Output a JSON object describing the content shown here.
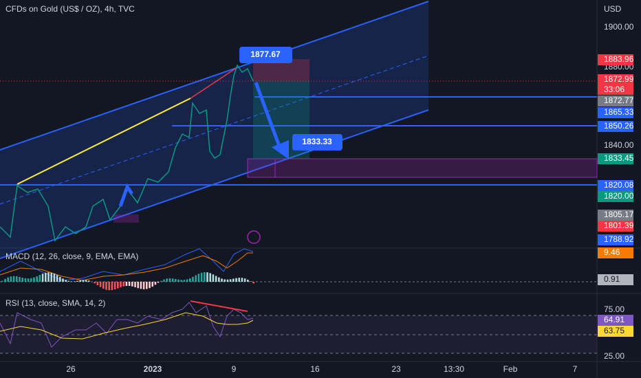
{
  "header": {
    "title": "CFDs on Gold (US$ / OZ), 4h, TVC"
  },
  "price_axis": {
    "unit": "USD",
    "ticks": [
      "1900.00",
      "1880.00",
      "1840.00"
    ],
    "tags": [
      {
        "text": "1883.96",
        "color": "#f23645"
      },
      {
        "text": "1872.99",
        "color": "#f23645"
      },
      {
        "text": "1872.77",
        "color": "#787b86"
      },
      {
        "text": "1865.33",
        "color": "#2962ff"
      },
      {
        "text": "1850.26",
        "color": "#2962ff"
      },
      {
        "text": "1833.45",
        "color": "#089981"
      },
      {
        "text": "1820.08",
        "color": "#2962ff"
      },
      {
        "text": "1820.00",
        "color": "#089981"
      },
      {
        "text": "1805.17",
        "color": "#787b86"
      },
      {
        "text": "1801.39",
        "color": "#f23645"
      },
      {
        "text": "1788.92",
        "color": "#2962ff"
      }
    ],
    "countdown": "33:06"
  },
  "annotations": [
    "1877.67",
    "1833.33"
  ],
  "macd": {
    "label": "MACD (12, 26, close, 9, EMA, EMA)",
    "tags": [
      {
        "text": "9.46",
        "color": "#f57c00"
      },
      {
        "text": "0.91",
        "color": "#b2b5be"
      }
    ]
  },
  "rsi": {
    "label": "RSI (13, close, SMA, 14, 2)",
    "ticks": [
      "75.00",
      "25.00"
    ],
    "tags": [
      {
        "text": "64.91",
        "color": "#7e57c2"
      },
      {
        "text": "63.75",
        "color": "#fdd835"
      }
    ]
  },
  "time_axis": [
    "26",
    "2023",
    "9",
    "16",
    "23",
    "13:30",
    "Feb",
    "7"
  ]
}
